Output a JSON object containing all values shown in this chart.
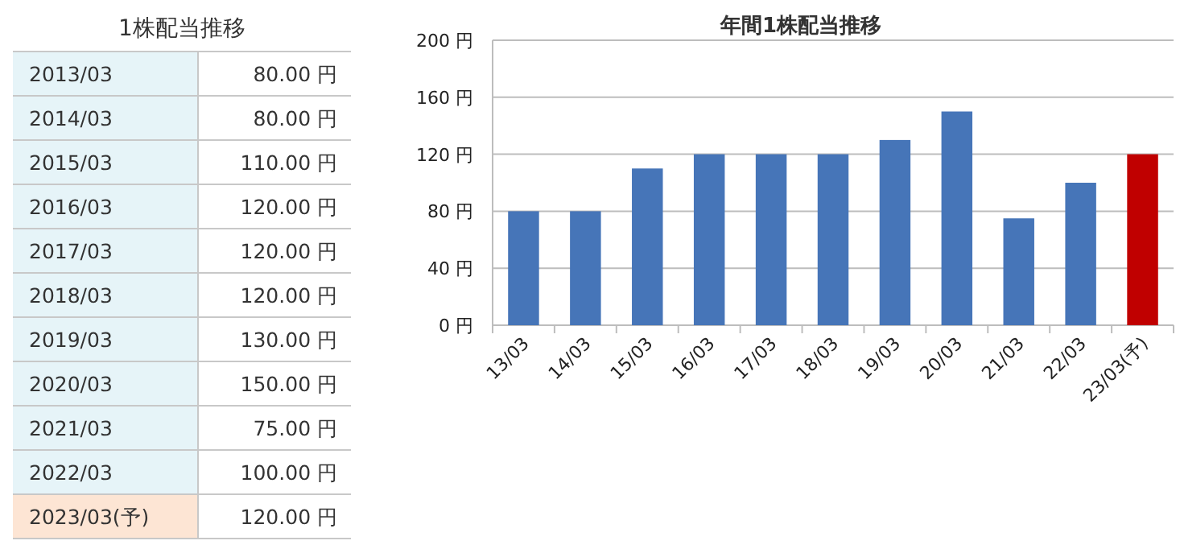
{
  "chart_data": [
    {
      "type": "other",
      "title": "1株配当推移",
      "annotations": [
        "2013/03",
        "80.00 円",
        "2014/03",
        "80.00 円",
        "2015/03",
        "110.00 円",
        "2016/03",
        "120.00 円",
        "2017/03",
        "120.00 円",
        "2018/03",
        "120.00 円",
        "2019/03",
        "130.00 円",
        "2020/03",
        "150.00 円",
        "2021/03",
        "75.00 円",
        "2022/03",
        "100.00 円",
        "2023/03(予)",
        "120.00 円"
      ],
      "colors": [
        "#e6f4f8",
        "#e6f4f8",
        "#e6f4f8",
        "#e6f4f8",
        "#e6f4f8",
        "#e6f4f8",
        "#e6f4f8",
        "#e6f4f8",
        "#e6f4f8",
        "#e6f4f8",
        "#fde5d4"
      ]
    },
    {
      "type": "bar",
      "title": "年間1株配当推移",
      "categories": [
        "13/03",
        "14/03",
        "15/03",
        "16/03",
        "17/03",
        "18/03",
        "19/03",
        "20/03",
        "21/03",
        "22/03",
        "23/03(予)"
      ],
      "values": [
        80,
        80,
        110,
        120,
        120,
        120,
        130,
        150,
        75,
        100,
        120
      ],
      "colors": [
        "#4675b8",
        "#4675b8",
        "#4675b8",
        "#4675b8",
        "#4675b8",
        "#4675b8",
        "#4675b8",
        "#4675b8",
        "#4675b8",
        "#4675b8",
        "#c00000"
      ],
      "ylim": [
        0,
        200
      ],
      "yticks": [
        {
          "value": 0,
          "label": "0 円"
        },
        {
          "value": 40,
          "label": "40 円"
        },
        {
          "value": 80,
          "label": "80 円"
        },
        {
          "value": 120,
          "label": "120 円"
        },
        {
          "value": 160,
          "label": "160 円"
        },
        {
          "value": 200,
          "label": "200 円"
        }
      ],
      "grid": "y"
    }
  ]
}
